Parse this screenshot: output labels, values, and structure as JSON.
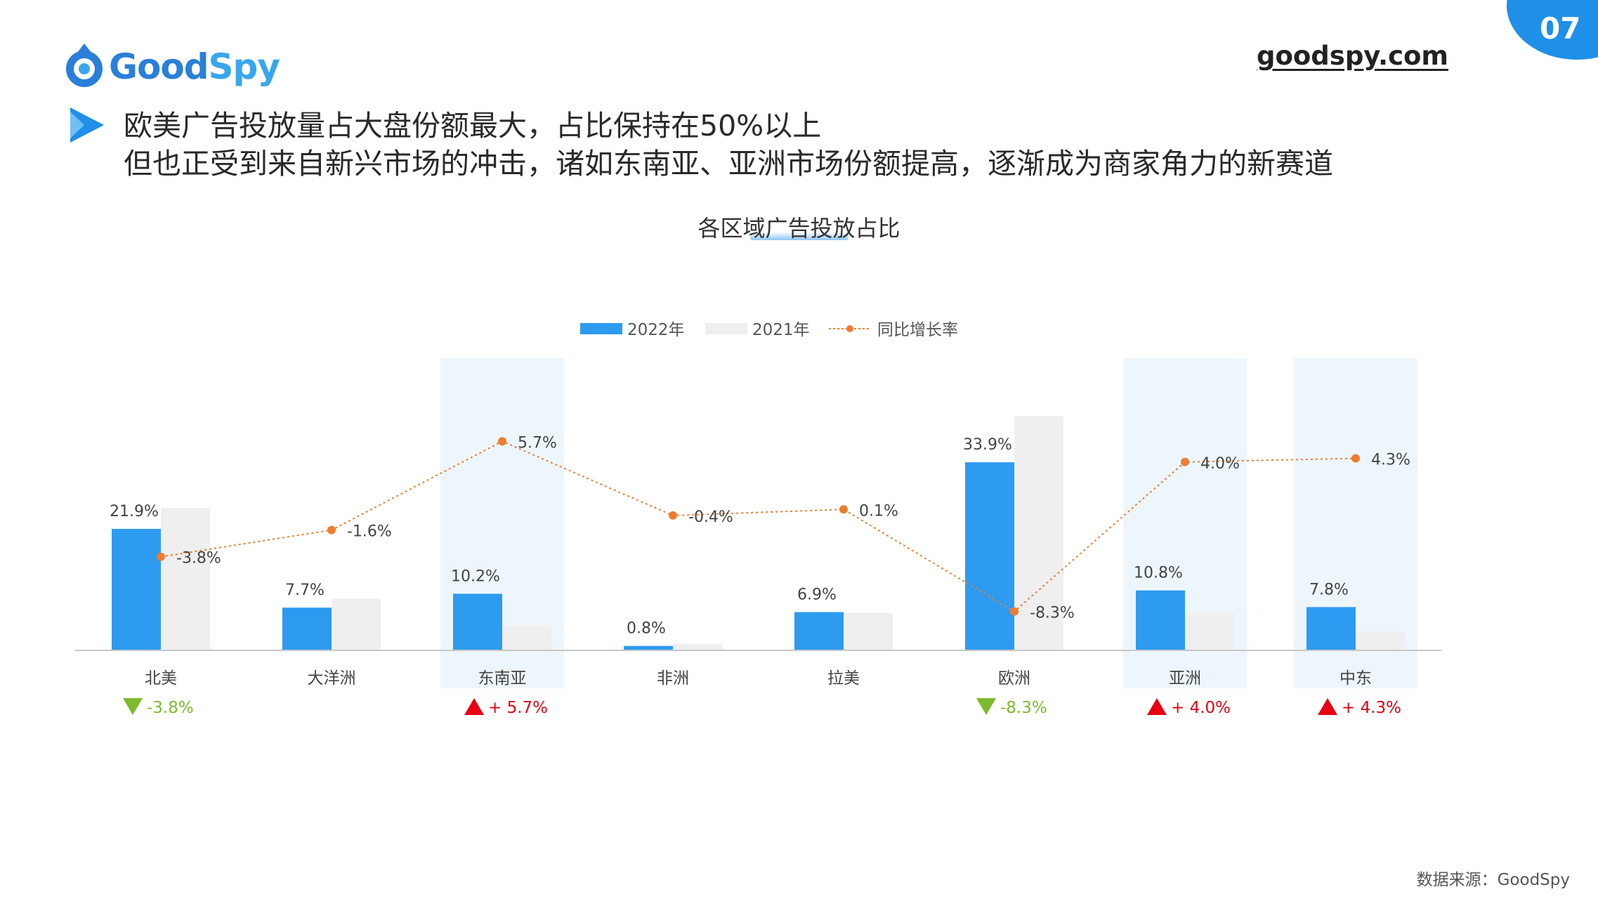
{
  "page": {
    "number": "07"
  },
  "header": {
    "logo_name": "GoodSpy",
    "logo_part1": "Good",
    "logo_part2": "Spy",
    "site": "goodspy.com"
  },
  "headline": {
    "line1": "欧美广告投放量占大盘份额最大，占比保持在50%以上",
    "line2": "但也正受到来自新兴市场的冲击，诸如东南亚、亚洲市场份额提高，逐渐成为商家角力的新赛道"
  },
  "colors": {
    "bar_2022": "#2d9bef",
    "bar_2021": "#efefef",
    "line": "#ed7d31",
    "highlight": "#eef6fd",
    "up": "#e60012",
    "down": "#7cba2e",
    "axis": "#c8c8c8"
  },
  "chart_data": {
    "type": "bar",
    "title": "各区域广告投放占比",
    "legend": {
      "position": "top",
      "bar_2022": "2022年",
      "bar_2021": "2021年",
      "line": "同比增长率"
    },
    "categories": [
      "北美",
      "大洋洲",
      "东南亚",
      "非洲",
      "拉美",
      "欧洲",
      "亚洲",
      "中东"
    ],
    "series": [
      {
        "name": "2022年",
        "values": [
          21.9,
          7.7,
          10.2,
          0.8,
          6.9,
          33.9,
          10.8,
          7.8
        ],
        "labels": [
          "21.9%",
          "7.7%",
          "10.2%",
          "0.8%",
          "6.9%",
          "33.9%",
          "10.8%",
          "7.8%"
        ]
      },
      {
        "name": "2021年",
        "values": [
          25.7,
          9.3,
          4.5,
          1.2,
          6.8,
          42.2,
          6.8,
          3.5
        ]
      },
      {
        "name": "同比增长率",
        "type": "line",
        "values": [
          -3.8,
          -1.6,
          5.7,
          -0.4,
          0.1,
          -8.3,
          4.0,
          4.3
        ],
        "labels": [
          "-3.8%",
          "-1.6%",
          "5.7%",
          "-0.4%",
          "0.1%",
          "-8.3%",
          "4.0%",
          "4.3%"
        ]
      }
    ],
    "highlighted_categories": [
      "东南亚",
      "亚洲",
      "中东"
    ],
    "change_indicators": [
      {
        "category": "北美",
        "direction": "down",
        "text": "-3.8%"
      },
      {
        "category": "东南亚",
        "direction": "up",
        "text": "+ 5.7%"
      },
      {
        "category": "欧洲",
        "direction": "down",
        "text": "-8.3%"
      },
      {
        "category": "亚洲",
        "direction": "up",
        "text": "+ 4.0%"
      },
      {
        "category": "中东",
        "direction": "up",
        "text": "+ 4.3%"
      }
    ]
  },
  "footer": {
    "source": "数据来源：GoodSpy"
  }
}
